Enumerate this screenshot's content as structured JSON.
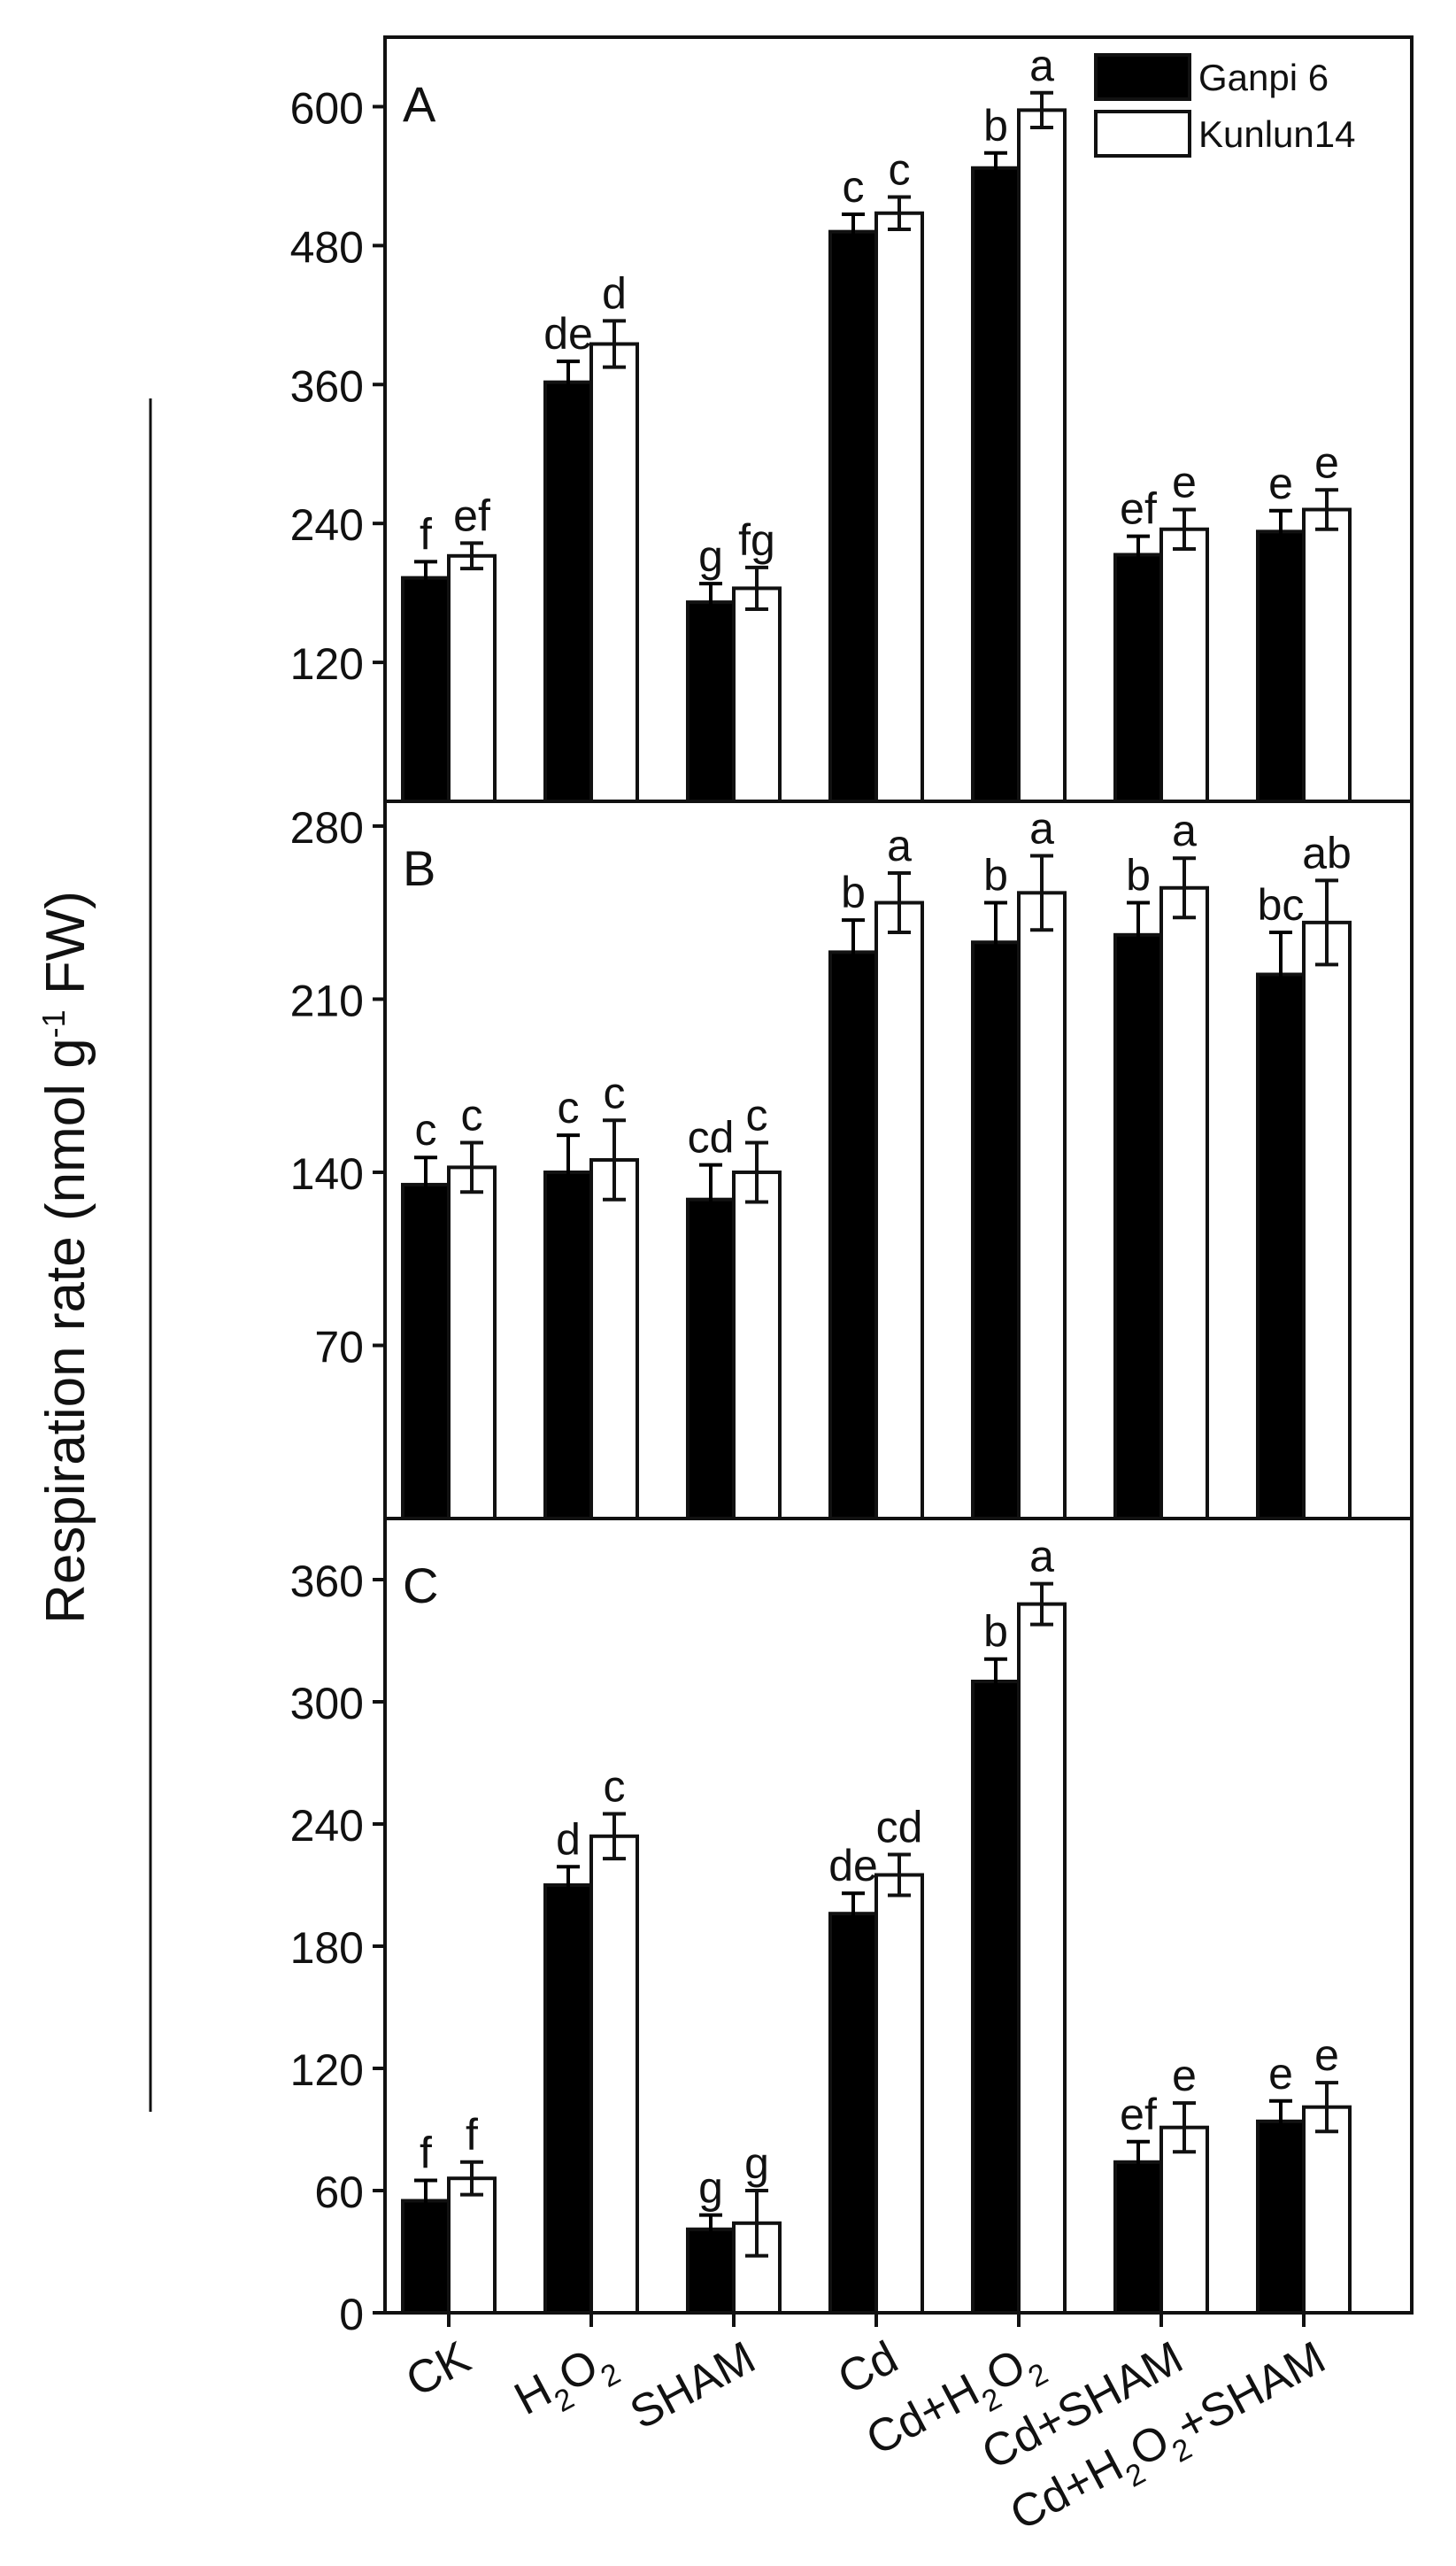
{
  "figure": {
    "ylabel": "Respiration  rate (nmol g-1 FW)",
    "ylabel_main": "Respiration  rate (nmol g",
    "ylabel_sup": "-1",
    "ylabel_tail": " FW)"
  },
  "chart_data": [
    {
      "type": "bar",
      "panel": "A",
      "title": "A",
      "categories": [
        "CK",
        "H2O2",
        "SHAM",
        "Cd",
        "Cd+H2O2",
        "Cd+SHAM",
        "Cd+H2O2+SHAM"
      ],
      "ylim": [
        0,
        660
      ],
      "yticks": [
        120,
        240,
        360,
        480,
        600
      ],
      "series": [
        {
          "name": "Ganpi 6",
          "color": "#000000",
          "values": [
            193,
            362,
            172,
            492,
            547,
            213,
            233
          ],
          "errors": [
            14,
            18,
            16,
            15,
            13,
            16,
            18
          ],
          "letters": [
            "f",
            "de",
            "g",
            "c",
            "b",
            "ef",
            "e"
          ]
        },
        {
          "name": "Kunlun14",
          "color": "#ffffff",
          "values": [
            212,
            395,
            184,
            508,
            597,
            235,
            252
          ],
          "errors": [
            11,
            20,
            18,
            14,
            15,
            17,
            17
          ],
          "letters": [
            "ef",
            "d",
            "fg",
            "c",
            "a",
            "e",
            "e"
          ]
        }
      ],
      "legend": {
        "position": "top-right",
        "entries": [
          "Ganpi 6",
          "Kunlun14"
        ]
      }
    },
    {
      "type": "bar",
      "panel": "B",
      "title": "B",
      "categories": [
        "CK",
        "H2O2",
        "SHAM",
        "Cd",
        "Cd+H2O2",
        "Cd+SHAM",
        "Cd+H2O2+SHAM"
      ],
      "ylim": [
        0,
        290
      ],
      "yticks": [
        70,
        140,
        210,
        280
      ],
      "series": [
        {
          "name": "Ganpi 6",
          "color": "#000000",
          "values": [
            135,
            140,
            129,
            229,
            233,
            236,
            220
          ],
          "errors": [
            11,
            15,
            14,
            13,
            16,
            13,
            17
          ],
          "letters": [
            "c",
            "c",
            "cd",
            "b",
            "b",
            "b",
            "bc"
          ]
        },
        {
          "name": "Kunlun14",
          "color": "#ffffff",
          "values": [
            142,
            145,
            140,
            249,
            253,
            255,
            241
          ],
          "errors": [
            10,
            16,
            12,
            12,
            15,
            12,
            17
          ],
          "letters": [
            "c",
            "c",
            "c",
            "a",
            "a",
            "a",
            "ab"
          ]
        }
      ]
    },
    {
      "type": "bar",
      "panel": "C",
      "title": "C",
      "categories": [
        "CK",
        "H2O2",
        "SHAM",
        "Cd",
        "Cd+H2O2",
        "Cd+SHAM",
        "Cd+H2O2+SHAM"
      ],
      "ylim": [
        0,
        390
      ],
      "yticks": [
        0,
        60,
        120,
        180,
        240,
        300,
        360
      ],
      "series": [
        {
          "name": "Ganpi 6",
          "color": "#000000",
          "values": [
            55,
            210,
            41,
            196,
            310,
            74,
            94
          ],
          "errors": [
            10,
            9,
            7,
            10,
            11,
            10,
            10
          ],
          "letters": [
            "f",
            "d",
            "g",
            "de",
            "b",
            "ef",
            "e"
          ]
        },
        {
          "name": "Kunlun14",
          "color": "#ffffff",
          "values": [
            66,
            234,
            44,
            215,
            348,
            91,
            101
          ],
          "errors": [
            8,
            11,
            16,
            10,
            10,
            12,
            12
          ],
          "letters": [
            "f",
            "c",
            "g",
            "cd",
            "a",
            "e",
            "e"
          ]
        }
      ],
      "x_tick_labels": [
        {
          "main": "CK"
        },
        {
          "main": "H",
          "sub1": "2",
          "mid": "O",
          "sub2": "2"
        },
        {
          "main": "SHAM"
        },
        {
          "main": "Cd"
        },
        {
          "main": "Cd+H",
          "sub1": "2",
          "mid": "O",
          "sub2": "2"
        },
        {
          "main": "Cd+SHAM"
        },
        {
          "main": "Cd+H",
          "sub1": "2",
          "mid": "O",
          "sub2": "2",
          "tail": "+SHAM"
        }
      ]
    }
  ]
}
